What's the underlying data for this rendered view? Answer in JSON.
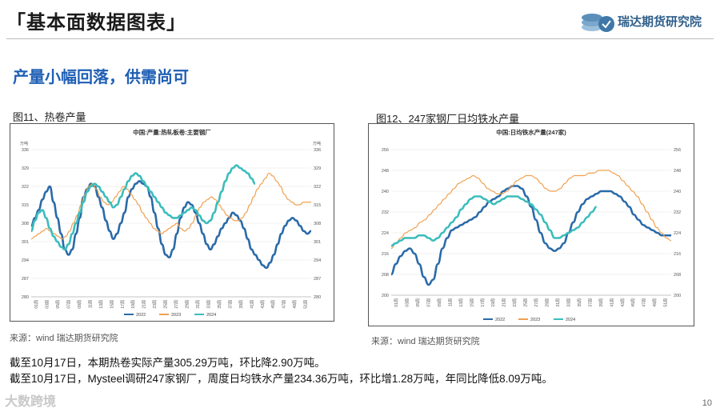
{
  "header": {
    "title": "「基本面数据图表」",
    "logo_text": "瑞达期货研究院"
  },
  "subtitle": "产量小幅回落，供需尚可",
  "panels": {
    "left": {
      "caption": "图11、热卷产量",
      "source": "来源：wind   瑞达期货研究院"
    },
    "right": {
      "caption": "图12、247家钢厂日均铁水产量",
      "source": "来源：wind   瑞达期货研究院"
    }
  },
  "notes": {
    "line1": "截至10月17日，本期热卷实际产量305.29万吨，环比降2.90万吨。",
    "line2": "截至10月17日，Mysteel调研247家钢厂，周度日均铁水产量234.36万吨，环比增1.28万吨，年同比降低8.09万吨。"
  },
  "footer": {
    "watermark": "大数跨境",
    "page": "10"
  },
  "colors": {
    "s2022": "#2a6aa8",
    "s2023": "#f0a050",
    "s2024": "#3bbcbc",
    "subtitle": "#1f5fb4"
  },
  "chart_data": [
    {
      "type": "line",
      "title": "中国:产量:热轧板卷:主要钢厂",
      "unit_left": "万吨",
      "unit_right": "万吨",
      "ylim": [
        280,
        336
      ],
      "yticks": [
        280,
        287,
        294,
        301,
        308,
        315,
        322,
        329,
        336
      ],
      "xticks": [
        "01周",
        "03周",
        "05周",
        "07周",
        "09周",
        "11周",
        "13周",
        "15周",
        "17周",
        "19周",
        "21周",
        "23周",
        "25周",
        "27周",
        "29周",
        "31周",
        "33周",
        "35周",
        "37周",
        "39周",
        "41周",
        "43周",
        "45周",
        "47周",
        "49周",
        "51周"
      ],
      "legend": [
        "2022",
        "2023",
        "2024"
      ],
      "series": [
        {
          "name": "2022",
          "values": [
            307,
            310,
            313,
            317,
            320,
            322,
            316,
            310,
            304,
            298,
            296,
            298,
            304,
            310,
            318,
            321,
            323,
            322,
            318,
            314,
            309,
            305,
            302,
            304,
            308,
            312,
            318,
            321,
            323,
            324,
            323,
            322,
            318,
            312,
            306,
            300,
            296,
            295,
            298,
            304,
            310,
            314,
            316,
            315,
            312,
            308,
            304,
            300,
            298,
            300,
            303,
            306,
            308,
            310,
            312,
            311,
            309,
            306,
            302,
            298,
            296,
            294,
            292,
            291,
            293,
            296,
            300,
            304,
            307,
            309,
            310,
            309,
            307,
            305,
            304,
            305
          ]
        },
        {
          "name": "2023",
          "values": [
            302,
            303,
            304,
            305,
            306,
            305,
            304,
            303,
            302,
            303,
            305,
            308,
            311,
            315,
            319,
            322,
            323,
            321,
            318,
            316,
            315,
            316,
            318,
            320,
            322,
            321,
            319,
            317,
            315,
            312,
            310,
            308,
            306,
            305,
            304,
            305,
            306,
            307,
            308,
            306,
            305,
            306,
            308,
            311,
            314,
            316,
            317,
            318,
            317,
            315,
            313,
            311,
            310,
            309,
            309,
            310,
            312,
            315,
            318,
            321,
            323,
            325,
            327,
            326,
            324,
            322,
            319,
            317,
            316,
            315,
            315,
            316,
            316,
            316
          ]
        },
        {
          "name": "2024",
          "values": [
            305,
            309,
            312,
            313,
            310,
            306,
            303,
            301,
            299,
            298,
            300,
            304,
            308,
            312,
            316,
            320,
            322,
            323,
            322,
            320,
            318,
            316,
            314,
            315,
            318,
            321,
            324,
            326,
            327,
            326,
            324,
            322,
            320,
            318,
            316,
            314,
            312,
            311,
            310,
            310,
            311,
            312,
            313,
            314,
            313,
            311,
            309,
            308,
            309,
            312,
            316,
            320,
            324,
            327,
            329,
            330,
            329,
            328,
            327,
            325,
            323
          ]
        }
      ]
    },
    {
      "type": "line",
      "title": "中国:日均铁水产量(247家)",
      "ylim": [
        200,
        256
      ],
      "yticks": [
        200,
        208,
        216,
        224,
        232,
        240,
        248,
        256
      ],
      "xticks": [
        "01周",
        "03周",
        "05周",
        "07周",
        "09周",
        "11周",
        "13周",
        "15周",
        "17周",
        "19周",
        "21周",
        "23周",
        "25周",
        "27周",
        "29周",
        "31周",
        "33周",
        "35周",
        "37周",
        "39周",
        "41周",
        "43周",
        "45周",
        "47周",
        "49周",
        "51周"
      ],
      "legend": [
        "2022",
        "2023",
        "2024"
      ],
      "series": [
        {
          "name": "2022",
          "values": [
            208,
            212,
            215,
            217,
            218,
            216,
            212,
            207,
            204,
            206,
            212,
            218,
            222,
            225,
            226,
            227,
            228,
            229,
            230,
            232,
            234,
            236,
            237,
            238,
            240,
            241,
            242,
            242,
            241,
            238,
            234,
            229,
            224,
            220,
            218,
            217,
            218,
            220,
            224,
            228,
            232,
            235,
            237,
            238,
            239,
            240,
            240,
            240,
            239,
            238,
            236,
            234,
            231,
            229,
            227,
            226,
            225,
            224,
            223,
            223,
            223
          ]
        },
        {
          "name": "2023",
          "values": [
            218,
            220,
            222,
            224,
            225,
            226,
            228,
            229,
            231,
            233,
            235,
            237,
            239,
            241,
            243,
            244,
            245,
            246,
            245,
            243,
            241,
            240,
            239,
            239,
            240,
            242,
            244,
            245,
            246,
            246,
            245,
            243,
            241,
            240,
            240,
            241,
            243,
            245,
            246,
            246,
            246,
            247,
            247,
            248,
            248,
            248,
            247,
            246,
            244,
            242,
            240,
            238,
            235,
            232,
            229,
            226,
            224,
            222,
            221
          ]
        },
        {
          "name": "2024",
          "values": [
            219,
            220,
            221,
            222,
            222,
            222,
            223,
            223,
            222,
            221,
            222,
            224,
            226,
            228,
            230,
            233,
            235,
            237,
            238,
            238,
            237,
            236,
            235,
            236,
            237,
            238,
            238,
            238,
            237,
            236,
            235,
            233,
            231,
            228,
            225,
            222,
            222,
            223,
            224,
            225,
            226,
            228,
            230,
            232,
            234
          ]
        }
      ]
    }
  ]
}
